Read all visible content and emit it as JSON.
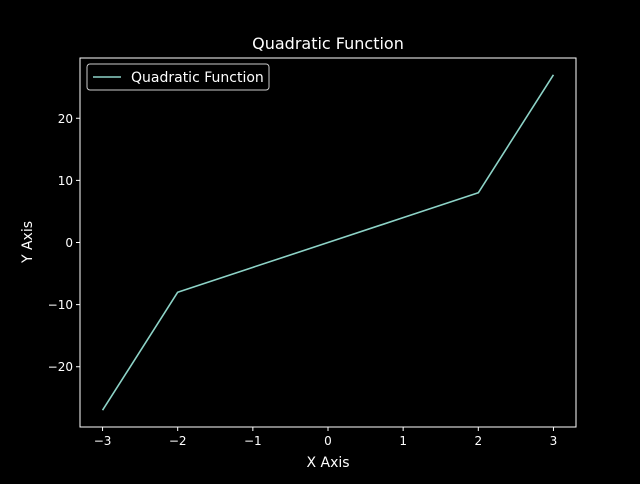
{
  "chart_data": {
    "type": "line",
    "title": "Quadratic Function",
    "xlabel": "X Axis",
    "ylabel": "Y Axis",
    "xlim": [
      -3.3,
      3.3
    ],
    "ylim": [
      -29.7,
      29.7
    ],
    "x_ticks": [
      -3,
      -2,
      -1,
      0,
      1,
      2,
      3
    ],
    "x_tick_labels": [
      "−3",
      "−2",
      "−1",
      "0",
      "1",
      "2",
      "3"
    ],
    "y_ticks": [
      -20,
      -10,
      0,
      10,
      20
    ],
    "y_tick_labels": [
      "−20",
      "−10",
      "0",
      "10",
      "20"
    ],
    "grid": false,
    "legend_position": "top-left",
    "series": [
      {
        "name": "Quadratic Function",
        "color": "#8dd3c7",
        "x": [
          -3,
          -2,
          -1,
          0,
          1,
          2,
          3
        ],
        "y": [
          -27,
          -8,
          -4,
          0,
          4,
          8,
          27
        ]
      }
    ]
  },
  "colors": {
    "background": "#000000",
    "foreground": "#ffffff",
    "legend_border": "#cccccc"
  }
}
